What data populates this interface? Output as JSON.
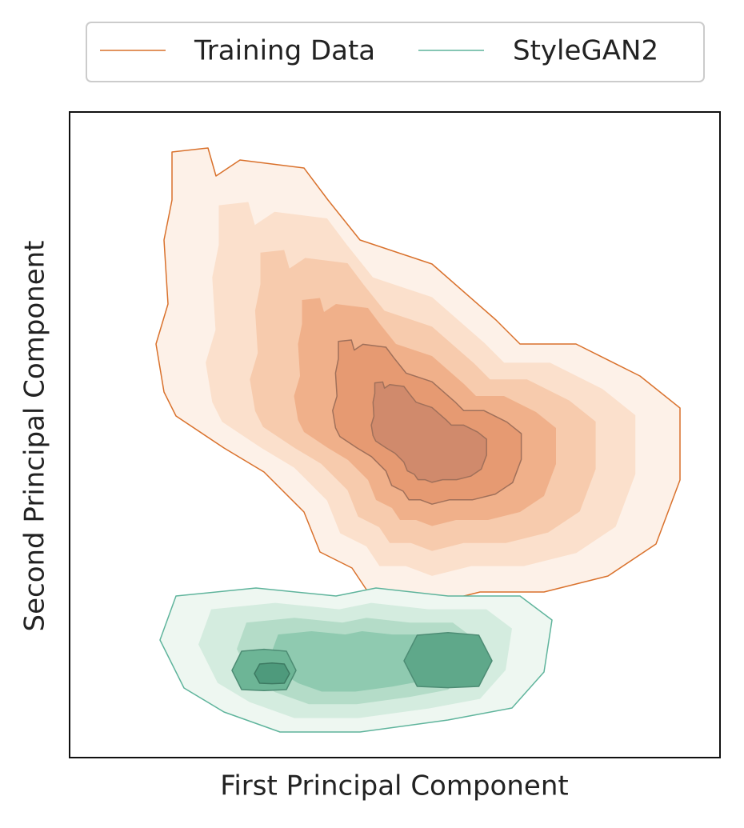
{
  "chart_data": {
    "type": "kde",
    "xlabel": "First Principal Component",
    "ylabel": "Second Principal Component",
    "series": [
      {
        "name": "Training Data",
        "color": "#d9712c"
      },
      {
        "name": "StyleGAN2",
        "color": "#5fb49c"
      }
    ]
  }
}
